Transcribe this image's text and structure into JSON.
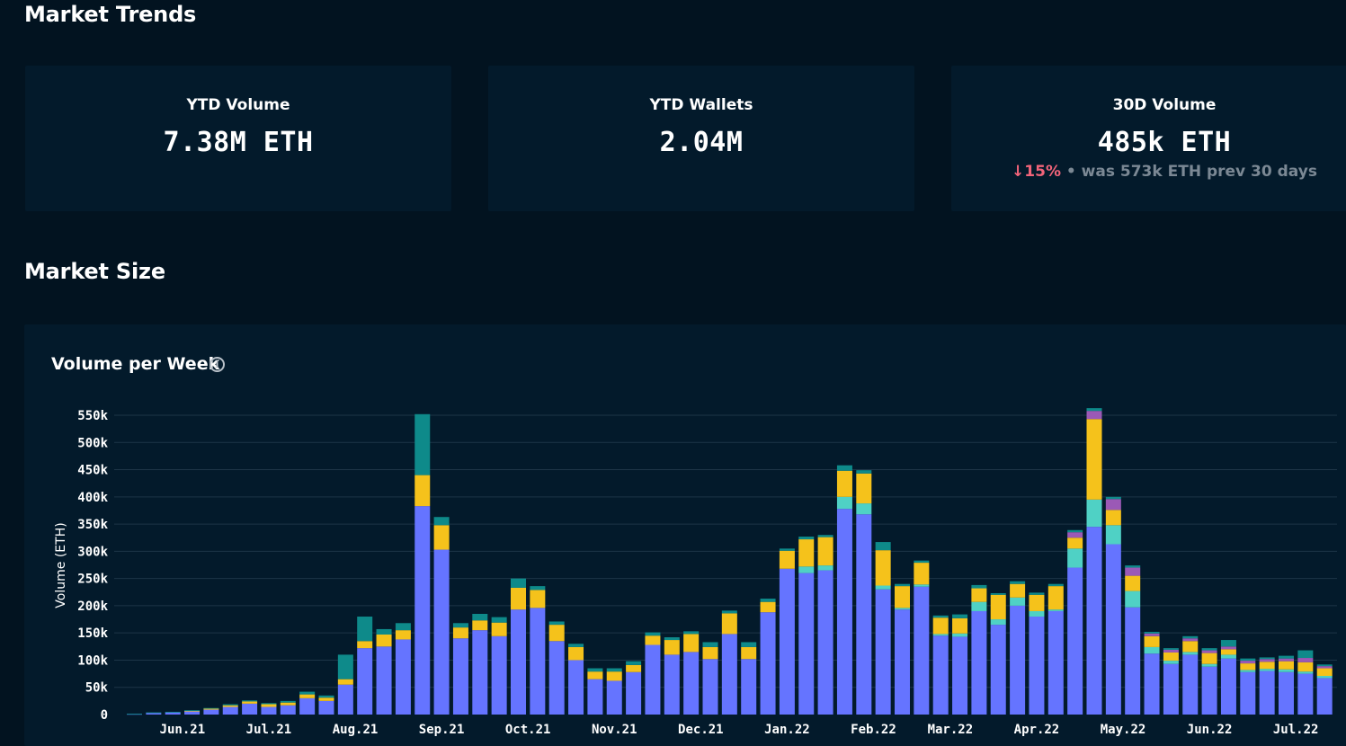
{
  "colors": {
    "background": "#021320",
    "card": "#031a2b",
    "grid": "#1d3547",
    "down": "#f2647a",
    "muted": "#7b8894"
  },
  "trends": {
    "title": "Market Trends",
    "cards": [
      {
        "label": "YTD Volume",
        "value": "7.38M ETH"
      },
      {
        "label": "YTD Wallets",
        "value": "2.04M"
      },
      {
        "label": "30D Volume",
        "value": "485k ETH",
        "change_arrow": "↓",
        "change_pct": "15%",
        "change_note": " • was 573k ETH prev 30 days"
      }
    ]
  },
  "size": {
    "title": "Market Size",
    "chart_title": "Volume per Week",
    "info_icon": "info-icon"
  },
  "chart_data": {
    "type": "bar",
    "stacked": true,
    "ylabel": "Volume (ETH)",
    "ylim": [
      0,
      560000
    ],
    "yticks": [
      0,
      50000,
      100000,
      150000,
      200000,
      250000,
      300000,
      350000,
      400000,
      450000,
      500000,
      550000
    ],
    "ytick_labels": [
      "0",
      "50k",
      "100k",
      "150k",
      "200k",
      "250k",
      "300k",
      "350k",
      "400k",
      "450k",
      "500k",
      "550k"
    ],
    "x_tick_labels": [
      {
        "label": "Jun.21",
        "index": 2.5
      },
      {
        "label": "Jul.21",
        "index": 7
      },
      {
        "label": "Aug.21",
        "index": 11.5
      },
      {
        "label": "Sep.21",
        "index": 16
      },
      {
        "label": "Oct.21",
        "index": 20.5
      },
      {
        "label": "Nov.21",
        "index": 25
      },
      {
        "label": "Dec.21",
        "index": 29.5
      },
      {
        "label": "Jan.22",
        "index": 34
      },
      {
        "label": "Feb.22",
        "index": 38.5
      },
      {
        "label": "Mar.22",
        "index": 42.5
      },
      {
        "label": "Apr.22",
        "index": 47
      },
      {
        "label": "May.22",
        "index": 51.5
      },
      {
        "label": "Jun.22",
        "index": 56
      },
      {
        "label": "Jul.22",
        "index": 60.5
      }
    ],
    "series": [
      {
        "color": "#6574ff",
        "values": [
          1000,
          3000,
          4000,
          6000,
          9000,
          14000,
          20000,
          14000,
          17000,
          30000,
          25000,
          55000,
          122000,
          125000,
          138000,
          383000,
          303000,
          140000,
          155000,
          144000,
          193000,
          196000,
          135000,
          100000,
          65000,
          62000,
          78000,
          128000,
          110000,
          115000,
          102000,
          148000,
          102000,
          188000,
          268000,
          260000,
          265000,
          378000,
          368000,
          230000,
          193000,
          235000,
          145000,
          143000,
          190000,
          165000,
          200000,
          180000,
          190000,
          270000,
          345000,
          313000,
          197000,
          112000,
          93000,
          110000,
          88000,
          103000,
          78000,
          80000,
          78000,
          75000,
          67000
        ]
      },
      {
        "color": "#4fd1c5",
        "values": [
          0,
          0,
          0,
          0,
          0,
          0,
          0,
          0,
          0,
          0,
          0,
          0,
          0,
          0,
          0,
          0,
          0,
          0,
          0,
          0,
          0,
          0,
          0,
          0,
          0,
          0,
          0,
          0,
          0,
          0,
          0,
          0,
          0,
          0,
          0,
          12000,
          9000,
          22000,
          20000,
          7000,
          3000,
          4000,
          3000,
          6000,
          17000,
          10000,
          15000,
          10000,
          3000,
          35000,
          50000,
          35000,
          30000,
          12000,
          6000,
          5000,
          5000,
          7000,
          4000,
          4000,
          5000,
          4000,
          4000
        ]
      },
      {
        "color": "#f5c21b",
        "values": [
          0,
          0,
          0,
          1000,
          2000,
          3000,
          4000,
          5000,
          5000,
          7000,
          6000,
          10000,
          13000,
          22000,
          17000,
          57000,
          45000,
          20000,
          18000,
          25000,
          40000,
          33000,
          30000,
          24000,
          14000,
          17000,
          13000,
          17000,
          27000,
          33000,
          22000,
          38000,
          22000,
          19000,
          33000,
          50000,
          52000,
          48000,
          55000,
          65000,
          40000,
          40000,
          30000,
          28000,
          25000,
          45000,
          25000,
          30000,
          43000,
          20000,
          148000,
          28000,
          28000,
          20000,
          15000,
          20000,
          20000,
          10000,
          12000,
          13000,
          15000,
          17000,
          14000
        ]
      },
      {
        "color": "#9b59b6",
        "values": [
          0,
          0,
          0,
          0,
          0,
          0,
          0,
          0,
          0,
          0,
          0,
          0,
          0,
          0,
          0,
          0,
          0,
          0,
          0,
          0,
          0,
          0,
          0,
          0,
          0,
          0,
          0,
          0,
          0,
          0,
          0,
          0,
          0,
          0,
          0,
          0,
          0,
          0,
          0,
          0,
          0,
          0,
          0,
          0,
          0,
          0,
          0,
          0,
          0,
          10000,
          15000,
          20000,
          15000,
          5000,
          5000,
          5000,
          5000,
          5000,
          5000,
          5000,
          5000,
          8000,
          4000
        ]
      },
      {
        "color": "#0e8a8a",
        "values": [
          500,
          1000,
          1000,
          1000,
          1000,
          2000,
          2000,
          2000,
          3000,
          5000,
          4000,
          45000,
          45000,
          10000,
          13000,
          112000,
          15000,
          8000,
          12000,
          10000,
          17000,
          7000,
          6000,
          6000,
          6000,
          6000,
          7000,
          6000,
          5000,
          5000,
          9000,
          5000,
          9000,
          6000,
          4000,
          5000,
          4000,
          10000,
          6000,
          15000,
          4000,
          4000,
          4000,
          7000,
          6000,
          3000,
          5000,
          4000,
          4000,
          4000,
          5000,
          4000,
          4000,
          3000,
          3000,
          4000,
          4000,
          12000,
          4000,
          3000,
          5000,
          14000,
          3000
        ]
      }
    ]
  }
}
